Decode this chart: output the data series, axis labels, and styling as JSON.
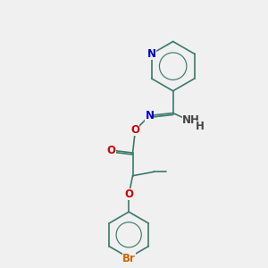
{
  "background_color": "#f0f0f0",
  "bond_color": "#3a7a6a",
  "atom_colors": {
    "N": "#0000cc",
    "O": "#cc0000",
    "Br": "#cc6600",
    "H": "#444444"
  },
  "lw": 1.2,
  "fs": 8.5
}
